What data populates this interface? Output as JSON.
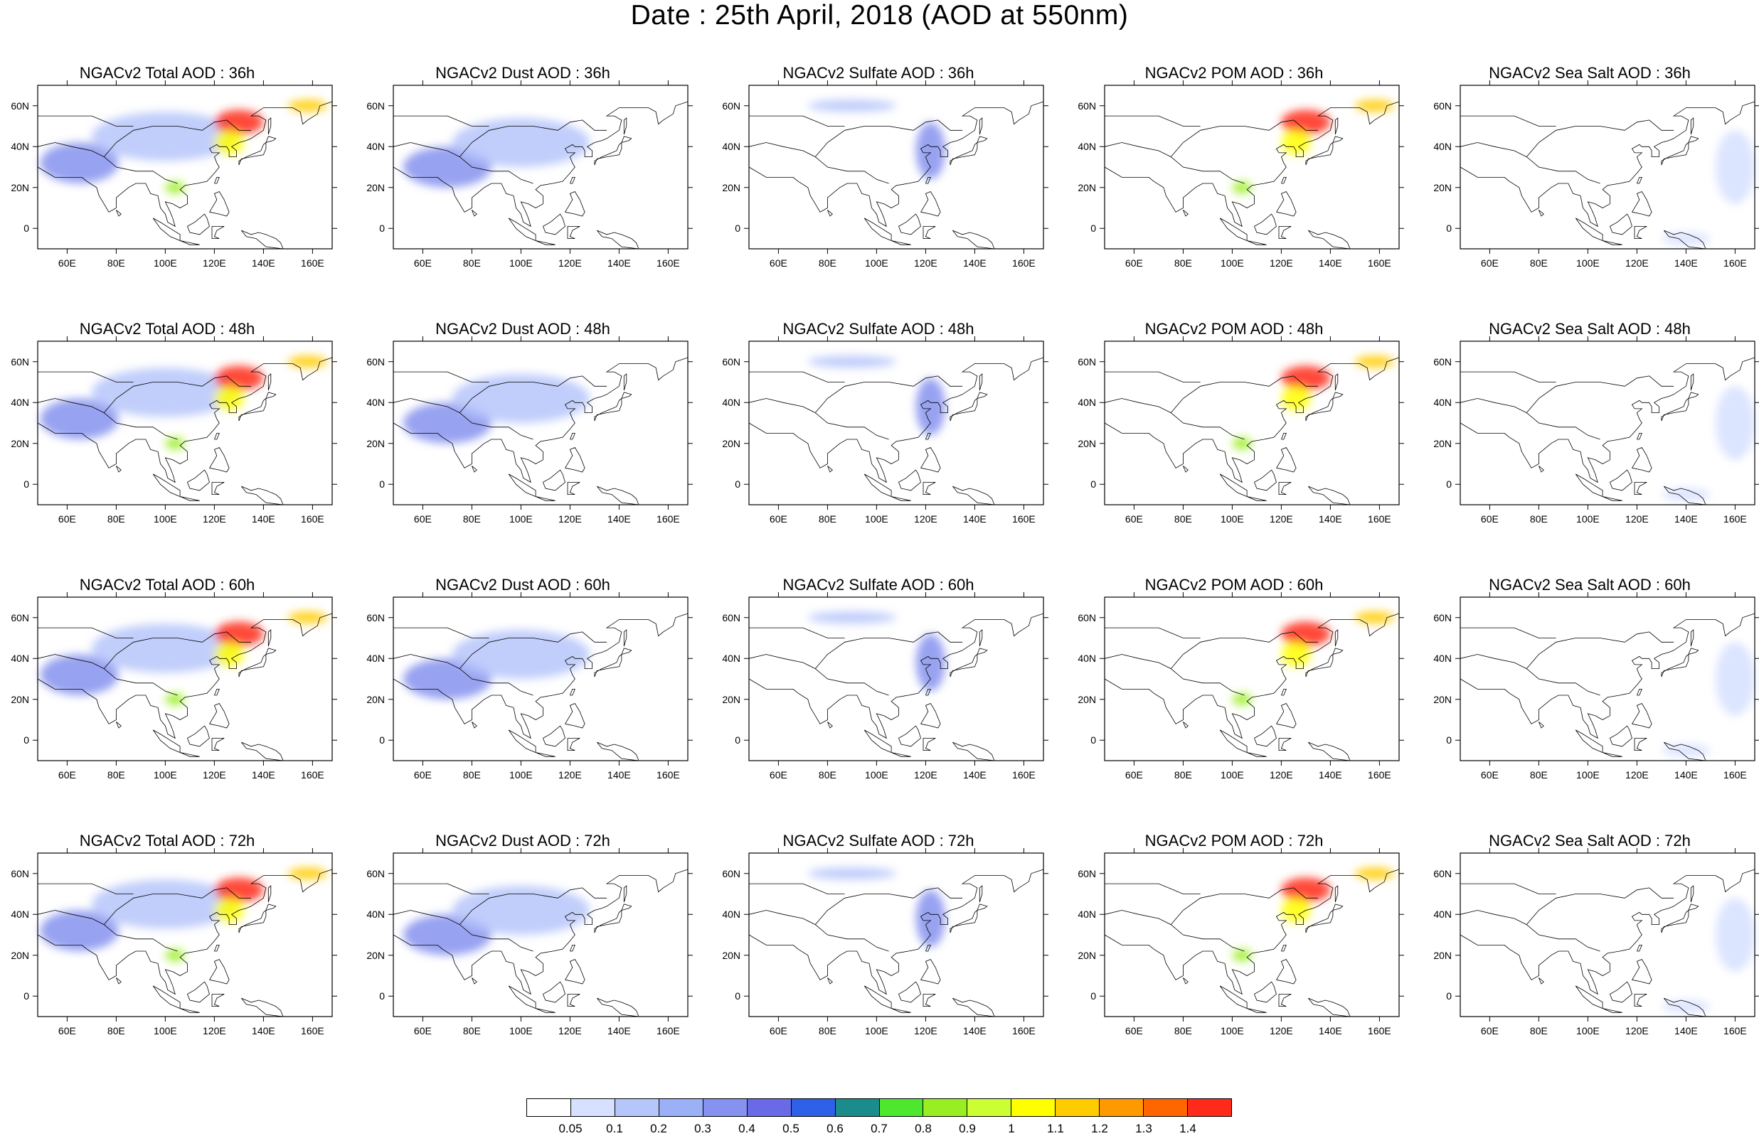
{
  "title": "Date : 25th April, 2018 (AOD at 550nm)",
  "panels": [
    [
      "NGACv2 Total AOD : 36h",
      "NGACv2 Dust AOD : 36h",
      "NGACv2 Sulfate AOD : 36h",
      "NGACv2 POM AOD : 36h",
      "NGACv2 Sea Salt AOD : 36h"
    ],
    [
      "NGACv2 Total AOD : 48h",
      "NGACv2 Dust AOD : 48h",
      "NGACv2 Sulfate AOD : 48h",
      "NGACv2 POM AOD : 48h",
      "NGACv2 Sea Salt AOD : 48h"
    ],
    [
      "NGACv2 Total AOD : 60h",
      "NGACv2 Dust AOD : 60h",
      "NGACv2 Sulfate AOD : 60h",
      "NGACv2 POM AOD : 60h",
      "NGACv2 Sea Salt AOD : 60h"
    ],
    [
      "NGACv2 Total AOD : 72h",
      "NGACv2 Dust AOD : 72h",
      "NGACv2 Sulfate AOD : 72h",
      "NGACv2 POM AOD : 72h",
      "NGACv2 Sea Salt  AOD : 72h"
    ]
  ],
  "axes": {
    "lon_range": [
      48,
      168
    ],
    "lat_range": [
      -10,
      70
    ],
    "x_ticks": [
      60,
      80,
      100,
      120,
      140,
      160
    ],
    "x_tick_labels": [
      "60E",
      "80E",
      "100E",
      "120E",
      "140E",
      "160E"
    ],
    "y_ticks": [
      0,
      20,
      40,
      60
    ],
    "y_tick_labels": [
      "0",
      "20N",
      "40N",
      "60N"
    ]
  },
  "colorbar": {
    "labels": [
      "0.05",
      "0.1",
      "0.2",
      "0.3",
      "0.4",
      "0.5",
      "0.6",
      "0.7",
      "0.8",
      "0.9",
      "1",
      "1.1",
      "1.2",
      "1.3",
      "1.4"
    ],
    "colors": [
      "#ffffff",
      "#d6e0ff",
      "#b6c6fa",
      "#9bb0f7",
      "#8592ef",
      "#6a6ae8",
      "#2e60e8",
      "#1a8c8c",
      "#4de82d",
      "#99ee22",
      "#ccff33",
      "#ffff00",
      "#ffcc00",
      "#ff9900",
      "#ff6600",
      "#ff2a1a"
    ]
  },
  "blobs": {
    "total": [
      {
        "lon": 65,
        "lat": 32,
        "rx": 16,
        "ry": 10,
        "color": "#8592ef"
      },
      {
        "lon": 100,
        "lat": 45,
        "rx": 30,
        "ry": 12,
        "color": "#b6c6fa"
      },
      {
        "lon": 130,
        "lat": 52,
        "rx": 10,
        "ry": 6,
        "color": "#ff2a1a"
      },
      {
        "lon": 126,
        "lat": 42,
        "rx": 6,
        "ry": 6,
        "color": "#ffff00"
      },
      {
        "lon": 104,
        "lat": 20,
        "rx": 4,
        "ry": 3,
        "color": "#99ee22"
      },
      {
        "lon": 158,
        "lat": 60,
        "rx": 8,
        "ry": 3,
        "color": "#ffcc00"
      }
    ],
    "dust": [
      {
        "lon": 70,
        "lat": 30,
        "rx": 18,
        "ry": 10,
        "color": "#8592ef"
      },
      {
        "lon": 100,
        "lat": 42,
        "rx": 28,
        "ry": 12,
        "color": "#b6c6fa"
      }
    ],
    "sulfate": [
      {
        "lon": 122,
        "lat": 38,
        "rx": 6,
        "ry": 14,
        "color": "#8592ef"
      },
      {
        "lon": 90,
        "lat": 60,
        "rx": 18,
        "ry": 3,
        "color": "#b6c6fa"
      }
    ],
    "pom": [
      {
        "lon": 130,
        "lat": 52,
        "rx": 10,
        "ry": 6,
        "color": "#ff2a1a"
      },
      {
        "lon": 126,
        "lat": 42,
        "rx": 6,
        "ry": 6,
        "color": "#ffff00"
      },
      {
        "lon": 104,
        "lat": 20,
        "rx": 4,
        "ry": 3,
        "color": "#99ee22"
      },
      {
        "lon": 158,
        "lat": 60,
        "rx": 8,
        "ry": 3,
        "color": "#ffcc00"
      }
    ],
    "seasalt": [
      {
        "lon": 160,
        "lat": 30,
        "rx": 8,
        "ry": 18,
        "color": "#d6e0ff"
      },
      {
        "lon": 140,
        "lat": -5,
        "rx": 10,
        "ry": 3,
        "color": "#d6e0ff"
      }
    ]
  },
  "coastlines": [
    [
      [
        48,
        30
      ],
      [
        55,
        25
      ],
      [
        60,
        25
      ],
      [
        66,
        25
      ],
      [
        68,
        23
      ],
      [
        72,
        20
      ],
      [
        73,
        16
      ],
      [
        75,
        12
      ],
      [
        77,
        8
      ],
      [
        80,
        10
      ],
      [
        80,
        15
      ],
      [
        85,
        20
      ],
      [
        88,
        22
      ],
      [
        92,
        22
      ],
      [
        94,
        17
      ],
      [
        97,
        16
      ],
      [
        98,
        10
      ],
      [
        100,
        7
      ],
      [
        101,
        3
      ],
      [
        104,
        1
      ],
      [
        103,
        5
      ],
      [
        102,
        8
      ],
      [
        100,
        13
      ],
      [
        103,
        12
      ],
      [
        106,
        10
      ],
      [
        109,
        12
      ],
      [
        109,
        16
      ],
      [
        106,
        19
      ],
      [
        108,
        21
      ],
      [
        113,
        22
      ],
      [
        117,
        23
      ],
      [
        120,
        27
      ],
      [
        122,
        30
      ],
      [
        121,
        32
      ],
      [
        120,
        35
      ],
      [
        122,
        37
      ],
      [
        119,
        37
      ],
      [
        118,
        39
      ],
      [
        121,
        41
      ],
      [
        122,
        40
      ],
      [
        125,
        40
      ],
      [
        126,
        38
      ],
      [
        126,
        35
      ],
      [
        129,
        35
      ],
      [
        129,
        38
      ],
      [
        127,
        40
      ],
      [
        130,
        42
      ],
      [
        133,
        43
      ],
      [
        135,
        44
      ],
      [
        140,
        48
      ],
      [
        141,
        53
      ],
      [
        138,
        55
      ],
      [
        135,
        55
      ],
      [
        140,
        59
      ],
      [
        146,
        59
      ],
      [
        152,
        59
      ],
      [
        155,
        57
      ],
      [
        156,
        51
      ],
      [
        158,
        53
      ],
      [
        162,
        56
      ],
      [
        163,
        60
      ],
      [
        168,
        62
      ]
    ],
    [
      [
        130,
        31
      ],
      [
        131,
        34
      ],
      [
        135,
        35
      ],
      [
        140,
        36
      ],
      [
        141,
        39
      ],
      [
        141,
        42
      ],
      [
        140,
        41
      ],
      [
        139,
        38
      ],
      [
        137,
        37
      ],
      [
        133,
        35
      ],
      [
        130,
        33
      ],
      [
        130,
        31
      ]
    ],
    [
      [
        141,
        42
      ],
      [
        144,
        43
      ],
      [
        145,
        44
      ],
      [
        142,
        45
      ],
      [
        141,
        42
      ]
    ],
    [
      [
        142,
        46
      ],
      [
        143,
        50
      ],
      [
        143,
        54
      ],
      [
        142,
        53
      ],
      [
        142,
        46
      ]
    ],
    [
      [
        120,
        22
      ],
      [
        121,
        25
      ],
      [
        122,
        25
      ],
      [
        121,
        22
      ],
      [
        120,
        22
      ]
    ],
    [
      [
        118,
        8
      ],
      [
        120,
        12
      ],
      [
        121,
        14
      ],
      [
        120,
        17
      ],
      [
        122,
        18
      ],
      [
        124,
        14
      ],
      [
        126,
        8
      ],
      [
        125,
        6
      ],
      [
        122,
        7
      ],
      [
        118,
        8
      ]
    ],
    [
      [
        95,
        5
      ],
      [
        98,
        3
      ],
      [
        102,
        0
      ],
      [
        106,
        -3
      ],
      [
        106,
        -6
      ],
      [
        102,
        -4
      ],
      [
        98,
        0
      ],
      [
        95,
        5
      ]
    ],
    [
      [
        106,
        -6
      ],
      [
        110,
        -7
      ],
      [
        114,
        -8
      ],
      [
        110,
        -8
      ],
      [
        106,
        -6
      ]
    ],
    [
      [
        109,
        1
      ],
      [
        110,
        -2
      ],
      [
        114,
        -3
      ],
      [
        116,
        -1
      ],
      [
        118,
        1
      ],
      [
        117,
        5
      ],
      [
        116,
        7
      ],
      [
        112,
        3
      ],
      [
        109,
        1
      ]
    ],
    [
      [
        119,
        1
      ],
      [
        121,
        1
      ],
      [
        124,
        1
      ],
      [
        121,
        -1
      ],
      [
        120,
        -4
      ],
      [
        122,
        -5
      ],
      [
        119,
        -5
      ],
      [
        119,
        1
      ]
    ],
    [
      [
        131,
        -1
      ],
      [
        135,
        -3
      ],
      [
        138,
        -2
      ],
      [
        141,
        -3
      ],
      [
        145,
        -5
      ],
      [
        147,
        -7
      ],
      [
        148,
        -10
      ],
      [
        141,
        -9
      ],
      [
        137,
        -5
      ],
      [
        133,
        -4
      ],
      [
        131,
        -1
      ]
    ],
    [
      [
        80,
        9
      ],
      [
        82,
        7
      ],
      [
        81,
        6
      ],
      [
        80,
        9
      ]
    ],
    [
      [
        48,
        40
      ],
      [
        55,
        42
      ],
      [
        62,
        40
      ],
      [
        70,
        38
      ],
      [
        75,
        35
      ],
      [
        80,
        30
      ],
      [
        88,
        28
      ],
      [
        95,
        28
      ],
      [
        100,
        24
      ],
      [
        105,
        22
      ]
    ],
    [
      [
        75,
        35
      ],
      [
        80,
        42
      ],
      [
        87,
        48
      ],
      [
        95,
        50
      ],
      [
        105,
        50
      ],
      [
        115,
        48
      ],
      [
        120,
        52
      ],
      [
        125,
        53
      ],
      [
        130,
        48
      ],
      [
        135,
        48
      ]
    ],
    [
      [
        48,
        55
      ],
      [
        60,
        55
      ],
      [
        70,
        55
      ],
      [
        80,
        50
      ],
      [
        87,
        50
      ]
    ]
  ]
}
